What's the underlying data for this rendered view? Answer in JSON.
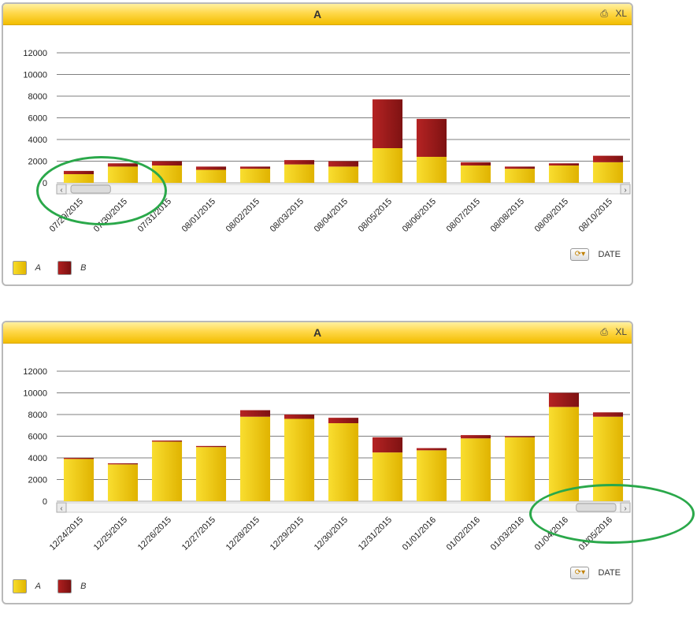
{
  "colors": {
    "series_a": "#eec81a",
    "series_b": "#9b1a1a",
    "highlight": "#2aa84a"
  },
  "icons": {
    "print": "print-icon",
    "excel": "excel-icon",
    "cycle": "cycle-icon"
  },
  "panels": [
    {
      "title": "A",
      "toolbar": {
        "print_glyph": "⎙",
        "excel_label": "XL"
      },
      "legend": [
        {
          "label": "A"
        },
        {
          "label": "B"
        }
      ],
      "cycle_label": "DATE",
      "scroll": {
        "thumb_start": 0.0,
        "thumb_end": 0.08
      }
    },
    {
      "title": "A",
      "toolbar": {
        "print_glyph": "⎙",
        "excel_label": "XL"
      },
      "legend": [
        {
          "label": "A"
        },
        {
          "label": "B"
        }
      ],
      "cycle_label": "DATE",
      "scroll": {
        "thumb_start": 0.92,
        "thumb_end": 1.0
      }
    }
  ],
  "chart_data": [
    {
      "type": "bar",
      "stacked": true,
      "categories": [
        "07/29/2015",
        "07/30/2015",
        "07/31/2015",
        "08/01/2015",
        "08/02/2015",
        "08/03/2015",
        "08/04/2015",
        "08/05/2015",
        "08/06/2015",
        "08/07/2015",
        "08/08/2015",
        "08/09/2015",
        "08/10/2015"
      ],
      "series": [
        {
          "name": "A",
          "values": [
            800,
            1500,
            1600,
            1200,
            1300,
            1700,
            1500,
            3200,
            2400,
            1600,
            1300,
            1600,
            1900
          ]
        },
        {
          "name": "B",
          "values": [
            300,
            300,
            400,
            300,
            200,
            400,
            500,
            4500,
            3500,
            300,
            200,
            200,
            600
          ]
        }
      ],
      "ylim": [
        0,
        12000
      ],
      "yticks": [
        0,
        2000,
        4000,
        6000,
        8000,
        10000,
        12000
      ],
      "grid": true,
      "legend_position": "bottom-left"
    },
    {
      "type": "bar",
      "stacked": true,
      "categories": [
        "12/24/2015",
        "12/25/2015",
        "12/26/2015",
        "12/27/2015",
        "12/28/2015",
        "12/29/2015",
        "12/30/2015",
        "12/31/2015",
        "01/01/2016",
        "01/02/2016",
        "01/03/2016",
        "01/04/2016",
        "01/05/2016"
      ],
      "series": [
        {
          "name": "A",
          "values": [
            3900,
            3400,
            5500,
            5000,
            7800,
            7600,
            7200,
            4500,
            4700,
            5800,
            5900,
            8700,
            7800
          ]
        },
        {
          "name": "B",
          "values": [
            100,
            100,
            100,
            100,
            600,
            400,
            500,
            1400,
            200,
            300,
            100,
            1300,
            400
          ]
        }
      ],
      "ylim": [
        0,
        12000
      ],
      "yticks": [
        0,
        2000,
        4000,
        6000,
        8000,
        10000,
        12000
      ],
      "grid": true,
      "legend_position": "bottom-left"
    }
  ]
}
